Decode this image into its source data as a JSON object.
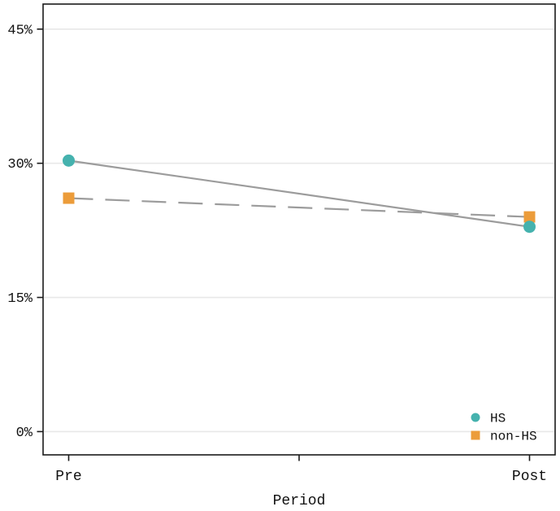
{
  "chart_data": {
    "type": "line",
    "title": "",
    "xlabel": "Period",
    "ylabel": "",
    "categories": [
      "Pre",
      "Post"
    ],
    "series": [
      {
        "name": "HS",
        "values": [
          30.3,
          22.9
        ],
        "marker": "circle",
        "color": "#45b2ae",
        "line_style": "solid"
      },
      {
        "name": "non-HS",
        "values": [
          26.1,
          24.0
        ],
        "marker": "square",
        "color": "#ec9c3a",
        "line_style": "dashed"
      }
    ],
    "line_color": "#9c9c9c",
    "yticks": [
      0,
      15,
      30,
      45
    ],
    "ytick_suffix": "%",
    "ylim": [
      -2.6,
      47.8
    ],
    "x_mid_tick_unlabeled": true,
    "grid": "horizontal",
    "gridline_color": "#e8e8e8",
    "axis_color": "#1a1a1a",
    "background_color": "#ffffff",
    "legend": {
      "position": "bottom-right",
      "entries": [
        {
          "label": "HS",
          "marker": "circle",
          "color": "#45b2ae"
        },
        {
          "label": "non-HS",
          "marker": "square",
          "color": "#ec9c3a"
        }
      ]
    }
  }
}
